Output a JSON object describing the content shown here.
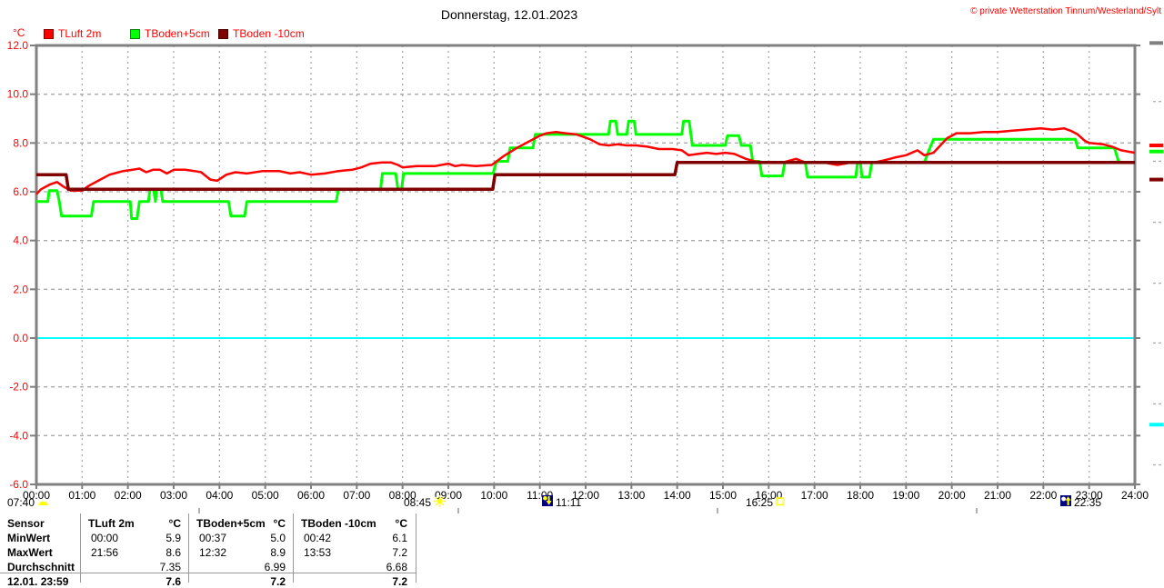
{
  "header": {
    "title": "Donnerstag, 12.01.2023",
    "copyright": "© private Wetterstation Tinnum/Westerland/Sylt"
  },
  "legend": {
    "unit": "°C",
    "items": [
      {
        "label": "TLuft 2m",
        "color": "#ff0000"
      },
      {
        "label": "TBoden+5cm",
        "color": "#00ff00"
      },
      {
        "label": "TBoden -10cm",
        "color": "#800000"
      }
    ]
  },
  "colors": {
    "axis": "#808080",
    "grid": "#aaaaaa",
    "zero_line": "#00ffff",
    "y_labels": "#ff0000",
    "x_labels": "#000000"
  },
  "astro": {
    "events": [
      {
        "time": "07:40",
        "icon": "dawn-icon"
      },
      {
        "time": "08:45",
        "icon": "sunrise-icon"
      },
      {
        "time": "11:11",
        "icon": "moonset-icon"
      },
      {
        "time": "16:25",
        "icon": "sunset-icon"
      },
      {
        "time": "22:35",
        "icon": "moonrise-icon"
      }
    ]
  },
  "chart_data": {
    "type": "line",
    "title": "Donnerstag, 12.01.2023",
    "ylabel": "°C",
    "xlabel": "",
    "ylim": [
      -6,
      12
    ],
    "xlim_hours": [
      0,
      24
    ],
    "grid": true,
    "legend_position": "top",
    "yticks": [
      12,
      10,
      8,
      6,
      4,
      2,
      0,
      -2,
      -4,
      -6
    ],
    "xticks": [
      "00:00",
      "01:00",
      "02:00",
      "03:00",
      "04:00",
      "05:00",
      "06:00",
      "07:00",
      "08:00",
      "09:00",
      "10:00",
      "11:00",
      "12:00",
      "13:00",
      "14:00",
      "15:00",
      "16:00",
      "17:00",
      "18:00",
      "19:00",
      "20:00",
      "21:00",
      "22:00",
      "23:00",
      "24:00"
    ],
    "series": [
      {
        "name": "TLuft 2m",
        "color": "#ff0000",
        "width": 2.5,
        "points": [
          [
            0,
            5.9
          ],
          [
            0.1,
            6.1
          ],
          [
            0.3,
            6.3
          ],
          [
            0.45,
            6.4
          ],
          [
            0.6,
            6.2
          ],
          [
            0.75,
            6.05
          ],
          [
            1.0,
            6.05
          ],
          [
            1.15,
            6.25
          ],
          [
            1.35,
            6.45
          ],
          [
            1.6,
            6.7
          ],
          [
            1.9,
            6.85
          ],
          [
            2.1,
            6.9
          ],
          [
            2.25,
            6.95
          ],
          [
            2.4,
            6.8
          ],
          [
            2.55,
            6.9
          ],
          [
            2.7,
            6.9
          ],
          [
            2.85,
            6.75
          ],
          [
            3.0,
            6.9
          ],
          [
            3.25,
            6.9
          ],
          [
            3.45,
            6.85
          ],
          [
            3.6,
            6.8
          ],
          [
            3.8,
            6.5
          ],
          [
            3.95,
            6.45
          ],
          [
            4.15,
            6.7
          ],
          [
            4.35,
            6.8
          ],
          [
            4.6,
            6.75
          ],
          [
            4.95,
            6.85
          ],
          [
            5.3,
            6.85
          ],
          [
            5.55,
            6.75
          ],
          [
            5.75,
            6.8
          ],
          [
            6.0,
            6.7
          ],
          [
            6.3,
            6.75
          ],
          [
            6.6,
            6.85
          ],
          [
            6.9,
            6.9
          ],
          [
            7.1,
            7.0
          ],
          [
            7.3,
            7.15
          ],
          [
            7.55,
            7.2
          ],
          [
            7.75,
            7.2
          ],
          [
            7.9,
            7.1
          ],
          [
            8.0,
            7.0
          ],
          [
            8.3,
            7.05
          ],
          [
            8.7,
            7.05
          ],
          [
            9.0,
            7.15
          ],
          [
            9.15,
            7.05
          ],
          [
            9.3,
            7.1
          ],
          [
            9.6,
            7.05
          ],
          [
            9.95,
            7.1
          ],
          [
            10.2,
            7.45
          ],
          [
            10.5,
            7.8
          ],
          [
            10.75,
            8.05
          ],
          [
            11.0,
            8.3
          ],
          [
            11.15,
            8.4
          ],
          [
            11.35,
            8.45
          ],
          [
            11.55,
            8.4
          ],
          [
            11.8,
            8.35
          ],
          [
            11.95,
            8.25
          ],
          [
            12.1,
            8.15
          ],
          [
            12.3,
            7.95
          ],
          [
            12.5,
            7.9
          ],
          [
            12.7,
            7.95
          ],
          [
            12.9,
            7.9
          ],
          [
            13.1,
            7.9
          ],
          [
            13.35,
            7.85
          ],
          [
            13.6,
            7.75
          ],
          [
            13.9,
            7.75
          ],
          [
            14.1,
            7.7
          ],
          [
            14.25,
            7.5
          ],
          [
            14.45,
            7.55
          ],
          [
            14.65,
            7.6
          ],
          [
            14.85,
            7.55
          ],
          [
            15.05,
            7.6
          ],
          [
            15.25,
            7.55
          ],
          [
            15.5,
            7.35
          ],
          [
            15.7,
            7.25
          ],
          [
            15.9,
            7.2
          ],
          [
            16.3,
            7.2
          ],
          [
            16.6,
            7.35
          ],
          [
            16.8,
            7.2
          ],
          [
            17.2,
            7.2
          ],
          [
            17.5,
            7.1
          ],
          [
            17.8,
            7.2
          ],
          [
            18.3,
            7.2
          ],
          [
            18.55,
            7.3
          ],
          [
            18.75,
            7.4
          ],
          [
            19.0,
            7.5
          ],
          [
            19.25,
            7.7
          ],
          [
            19.4,
            7.5
          ],
          [
            19.6,
            7.6
          ],
          [
            19.75,
            7.9
          ],
          [
            19.9,
            8.2
          ],
          [
            20.1,
            8.4
          ],
          [
            20.4,
            8.4
          ],
          [
            20.7,
            8.45
          ],
          [
            21.0,
            8.45
          ],
          [
            21.3,
            8.5
          ],
          [
            21.6,
            8.55
          ],
          [
            21.95,
            8.6
          ],
          [
            22.2,
            8.55
          ],
          [
            22.45,
            8.6
          ],
          [
            22.6,
            8.5
          ],
          [
            22.75,
            8.35
          ],
          [
            22.9,
            8.1
          ],
          [
            23.0,
            8.0
          ],
          [
            23.3,
            7.95
          ],
          [
            23.5,
            7.85
          ],
          [
            23.7,
            7.7
          ],
          [
            24,
            7.6
          ]
        ]
      },
      {
        "name": "TBoden+5cm",
        "color": "#00ff00",
        "width": 3,
        "points": [
          [
            0,
            5.6
          ],
          [
            0.25,
            5.6
          ],
          [
            0.28,
            6.05
          ],
          [
            0.45,
            6.05
          ],
          [
            0.5,
            5.6
          ],
          [
            0.55,
            5.0
          ],
          [
            1.2,
            5.0
          ],
          [
            1.25,
            5.6
          ],
          [
            2.05,
            5.6
          ],
          [
            2.08,
            4.9
          ],
          [
            2.2,
            4.9
          ],
          [
            2.25,
            5.6
          ],
          [
            2.45,
            5.6
          ],
          [
            2.48,
            6.1
          ],
          [
            2.56,
            6.1
          ],
          [
            2.6,
            5.6
          ],
          [
            2.63,
            6.1
          ],
          [
            2.72,
            6.1
          ],
          [
            2.76,
            5.6
          ],
          [
            4.2,
            5.6
          ],
          [
            4.25,
            5.0
          ],
          [
            4.55,
            5.0
          ],
          [
            4.6,
            5.6
          ],
          [
            6.55,
            5.6
          ],
          [
            6.6,
            6.1
          ],
          [
            7.52,
            6.1
          ],
          [
            7.56,
            6.75
          ],
          [
            7.85,
            6.75
          ],
          [
            7.9,
            6.1
          ],
          [
            7.98,
            6.1
          ],
          [
            8.02,
            6.75
          ],
          [
            9.98,
            6.75
          ],
          [
            10.05,
            7.25
          ],
          [
            10.3,
            7.25
          ],
          [
            10.35,
            7.8
          ],
          [
            10.85,
            7.8
          ],
          [
            10.9,
            8.35
          ],
          [
            12.5,
            8.35
          ],
          [
            12.54,
            8.9
          ],
          [
            12.66,
            8.9
          ],
          [
            12.7,
            8.35
          ],
          [
            12.9,
            8.35
          ],
          [
            12.94,
            8.9
          ],
          [
            13.06,
            8.9
          ],
          [
            13.1,
            8.35
          ],
          [
            14.1,
            8.35
          ],
          [
            14.14,
            8.9
          ],
          [
            14.26,
            8.9
          ],
          [
            14.3,
            8.35
          ],
          [
            14.33,
            7.9
          ],
          [
            15.05,
            7.9
          ],
          [
            15.1,
            8.3
          ],
          [
            15.35,
            8.3
          ],
          [
            15.4,
            7.9
          ],
          [
            15.6,
            7.9
          ],
          [
            15.65,
            7.25
          ],
          [
            15.8,
            7.25
          ],
          [
            15.85,
            6.65
          ],
          [
            16.3,
            6.65
          ],
          [
            16.35,
            7.2
          ],
          [
            16.8,
            7.2
          ],
          [
            16.85,
            6.6
          ],
          [
            17.9,
            6.6
          ],
          [
            17.94,
            7.2
          ],
          [
            18.0,
            7.2
          ],
          [
            18.04,
            6.6
          ],
          [
            18.2,
            6.6
          ],
          [
            18.25,
            7.2
          ],
          [
            19.4,
            7.2
          ],
          [
            19.5,
            7.7
          ],
          [
            19.6,
            8.15
          ],
          [
            22.7,
            8.15
          ],
          [
            22.75,
            7.8
          ],
          [
            23.55,
            7.8
          ],
          [
            23.65,
            7.2
          ],
          [
            24,
            7.2
          ]
        ]
      },
      {
        "name": "TBoden -10cm",
        "color": "#800000",
        "width": 3.5,
        "points": [
          [
            0,
            6.7
          ],
          [
            0.65,
            6.7
          ],
          [
            0.7,
            6.1
          ],
          [
            9.97,
            6.1
          ],
          [
            10.02,
            6.7
          ],
          [
            13.95,
            6.7
          ],
          [
            14.0,
            7.2
          ],
          [
            24,
            7.2
          ]
        ]
      }
    ],
    "edge_markers": [
      {
        "color": "#808080",
        "T": 12.1
      },
      {
        "color": "#ff0000",
        "T": 7.9
      },
      {
        "color": "#00ff00",
        "T": 7.65
      },
      {
        "color": "#800000",
        "T": 6.5
      },
      {
        "color": "#00ffff",
        "T": -3.55
      }
    ],
    "edge_ticks_T": [
      9.7,
      7.25,
      4.75,
      2.25,
      -0.2,
      -2.7,
      -5.2
    ]
  },
  "stats_table": {
    "row_labels": [
      "Sensor",
      "MinWert",
      "MaxWert",
      "Durchschnitt",
      "12.01. 23:59"
    ],
    "columns": [
      {
        "header": "TLuft 2m",
        "unit": "°C",
        "min_time": "00:00",
        "min": "5.9",
        "max_time": "21:56",
        "max": "8.6",
        "avg": "7.35",
        "last": "7.6"
      },
      {
        "header": "TBoden+5cm",
        "unit": "°C",
        "min_time": "00:37",
        "min": "5.0",
        "max_time": "12:32",
        "max": "8.9",
        "avg": "6.99",
        "last": "7.2"
      },
      {
        "header": "TBoden -10cm",
        "unit": "°C",
        "min_time": "00:42",
        "min": "6.1",
        "max_time": "13:53",
        "max": "7.2",
        "avg": "6.68",
        "last": "7.2"
      }
    ]
  }
}
